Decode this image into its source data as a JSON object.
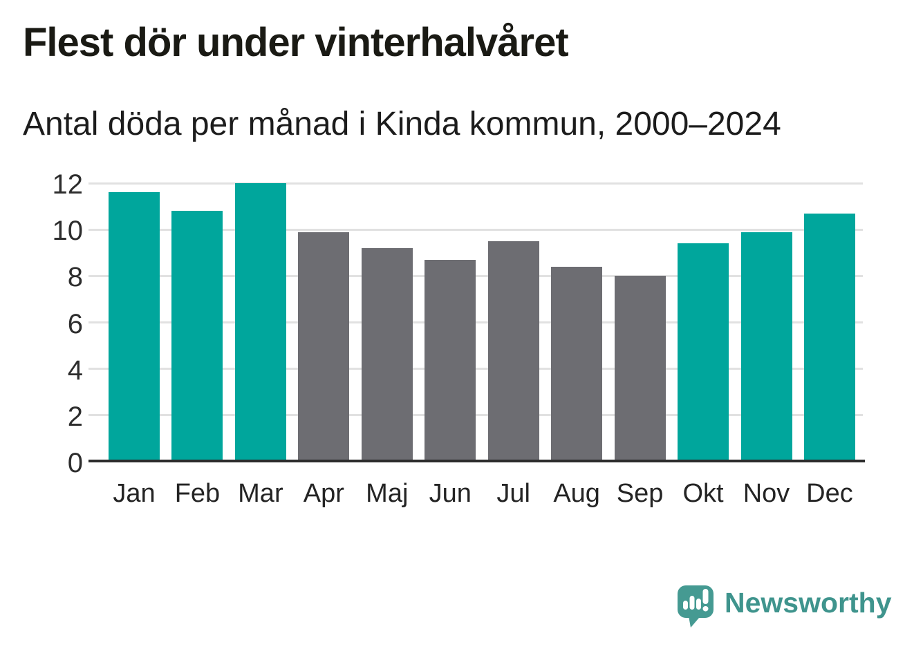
{
  "header": {
    "title": "Flest dör under vinterhalvåret",
    "subtitle": "Antal döda per månad i Kinda kommun, 2000–2024"
  },
  "chart_data": {
    "type": "bar",
    "title": "Flest dör under vinterhalvåret",
    "subtitle": "Antal döda per månad i Kinda kommun, 2000–2024",
    "categories": [
      "Jan",
      "Feb",
      "Mar",
      "Apr",
      "Maj",
      "Jun",
      "Jul",
      "Aug",
      "Sep",
      "Okt",
      "Nov",
      "Dec"
    ],
    "values": [
      11.6,
      10.8,
      12.0,
      9.9,
      9.2,
      8.7,
      9.5,
      8.4,
      8.0,
      9.4,
      9.9,
      10.7
    ],
    "bar_color_keys": [
      "teal",
      "teal",
      "teal",
      "gray",
      "gray",
      "gray",
      "gray",
      "gray",
      "gray",
      "teal",
      "teal",
      "teal"
    ],
    "colors": {
      "teal": "#00a69c",
      "gray": "#6d6d72"
    },
    "xlabel": "",
    "ylabel": "",
    "ylim": [
      0,
      12
    ],
    "yticks": [
      0,
      2,
      4,
      6,
      8,
      10,
      12
    ],
    "grid": "horizontal",
    "legend": "none",
    "highlight_meaning": "teal = winter half-year months (Okt–Mar), gray = summer half-year months (Apr–Sep)"
  },
  "footer": {
    "brand": "Newsworthy",
    "logo_icon": "speech-bubble-bar-chart-exclamation",
    "logo_color": "#459a92"
  }
}
